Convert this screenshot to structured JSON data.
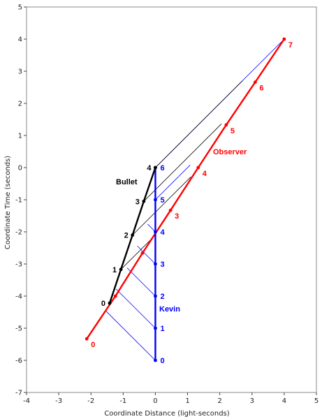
{
  "chart_data": {
    "type": "line",
    "xlabel": "Coordinate Distance (light-seconds)",
    "ylabel": "Coordinate Time (seconds)",
    "xlim": [
      -4,
      5
    ],
    "ylim": [
      -7,
      5
    ],
    "xticks": [
      "-4",
      "-3",
      "-2",
      "-1",
      "0",
      "1",
      "2",
      "3",
      "4",
      "5"
    ],
    "yticks": [
      "-7",
      "-6",
      "-5",
      "-4",
      "-3",
      "-2",
      "-1",
      "0",
      "1",
      "2",
      "3",
      "4",
      "5"
    ],
    "colors": {
      "observer": "#ff0000",
      "kevin": "#0000ff",
      "bullet": "#000000",
      "axis": "#000000"
    },
    "series": [
      {
        "name": "Observer",
        "color": "#ff0000",
        "points": [
          {
            "x": -2.13,
            "y": -5.33,
            "label": "0"
          },
          {
            "x": -1.24,
            "y": -4.0,
            "label": ""
          },
          {
            "x": -0.4,
            "y": -2.66,
            "label": ""
          },
          {
            "x": 0.47,
            "y": -1.33,
            "label": "3"
          },
          {
            "x": 1.33,
            "y": 0.0,
            "label": "4"
          },
          {
            "x": 2.2,
            "y": 1.33,
            "label": "5"
          },
          {
            "x": 3.1,
            "y": 2.66,
            "label": "6"
          },
          {
            "x": 4.0,
            "y": 4.0,
            "label": "7"
          }
        ]
      },
      {
        "name": "Kevin",
        "color": "#0000ff",
        "points": [
          {
            "x": 0,
            "y": -6,
            "label": "0"
          },
          {
            "x": 0,
            "y": -5,
            "label": "1"
          },
          {
            "x": 0,
            "y": -4,
            "label": "2"
          },
          {
            "x": 0,
            "y": -3,
            "label": "3"
          },
          {
            "x": 0,
            "y": -2,
            "label": "4"
          },
          {
            "x": 0,
            "y": -1,
            "label": "5"
          },
          {
            "x": 0,
            "y": 0,
            "label": "6"
          }
        ]
      },
      {
        "name": "Bullet",
        "color": "#000000",
        "points": [
          {
            "x": -1.42,
            "y": -4.22,
            "label": "0"
          },
          {
            "x": -1.07,
            "y": -3.17,
            "label": "1"
          },
          {
            "x": -0.71,
            "y": -2.1,
            "label": "2"
          },
          {
            "x": -0.36,
            "y": -1.05,
            "label": "3"
          },
          {
            "x": 0,
            "y": 0,
            "label": "4"
          }
        ]
      }
    ],
    "signals_kevin_to_observer": [
      {
        "from": [
          0,
          -6
        ],
        "to": [
          -1.54,
          -4.46
        ]
      },
      {
        "from": [
          0,
          -5
        ],
        "to": [
          -1.22,
          -3.78
        ]
      },
      {
        "from": [
          0,
          -4
        ],
        "to": [
          -0.88,
          -3.12
        ]
      },
      {
        "from": [
          0,
          -3
        ],
        "to": [
          -0.56,
          -2.44
        ]
      },
      {
        "from": [
          0,
          -2
        ],
        "to": [
          -0.24,
          -1.76
        ]
      },
      {
        "from": [
          0,
          -1
        ],
        "to": [
          1.08,
          0.08
        ]
      },
      {
        "from": [
          0,
          0
        ],
        "to": [
          4.0,
          4.0
        ]
      }
    ],
    "signals_bullet_to_observer": [
      {
        "from": [
          -1.07,
          -3.17
        ],
        "to": [
          0.0,
          -2.1
        ]
      },
      {
        "from": [
          -0.71,
          -2.1
        ],
        "to": [
          1.1,
          -0.29
        ]
      },
      {
        "from": [
          -0.36,
          -1.05
        ],
        "to": [
          2.05,
          1.36
        ]
      },
      {
        "from": [
          0,
          0
        ],
        "to": [
          2.7,
          2.7
        ]
      }
    ]
  }
}
